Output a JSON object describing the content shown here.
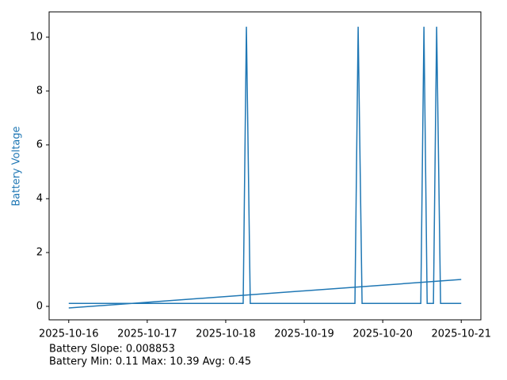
{
  "chart_data": {
    "type": "line",
    "ylabel": "Battery Voltage",
    "ylabel_color": "#1f77b4",
    "annotations": [
      "Battery Slope: 0.008853",
      "Battery Min: 0.11 Max: 10.39 Avg: 0.45"
    ],
    "xlim": [
      "2025-10-15T18:00",
      "2025-10-21T06:00"
    ],
    "xticks": [
      "2025-10-16",
      "2025-10-17",
      "2025-10-18",
      "2025-10-19",
      "2025-10-20",
      "2025-10-21"
    ],
    "ylim": [
      -0.5,
      10.94
    ],
    "yticks": [
      0,
      2,
      4,
      6,
      8,
      10
    ],
    "series": [
      {
        "color": "#1f77b4",
        "x": [
          "2025-10-16T00:00",
          "2025-10-18T05:20",
          "2025-10-18T06:19",
          "2025-10-18T07:30",
          "2025-10-19T15:30",
          "2025-10-19T16:29",
          "2025-10-19T17:41",
          "2025-10-20T11:38",
          "2025-10-20T12:36",
          "2025-10-20T13:35",
          "2025-10-20T15:30",
          "2025-10-20T16:29",
          "2025-10-20T17:41",
          "2025-10-21T00:00"
        ],
        "values": [
          0.11,
          0.11,
          10.39,
          0.11,
          0.11,
          10.39,
          0.11,
          0.11,
          10.39,
          0.11,
          0.11,
          10.39,
          0.11,
          0.11
        ]
      },
      {
        "color": "#1f77b4",
        "x": [
          "2025-10-16T00:00",
          "2025-10-21T00:00"
        ],
        "values": [
          -0.06,
          1.0
        ]
      }
    ]
  }
}
